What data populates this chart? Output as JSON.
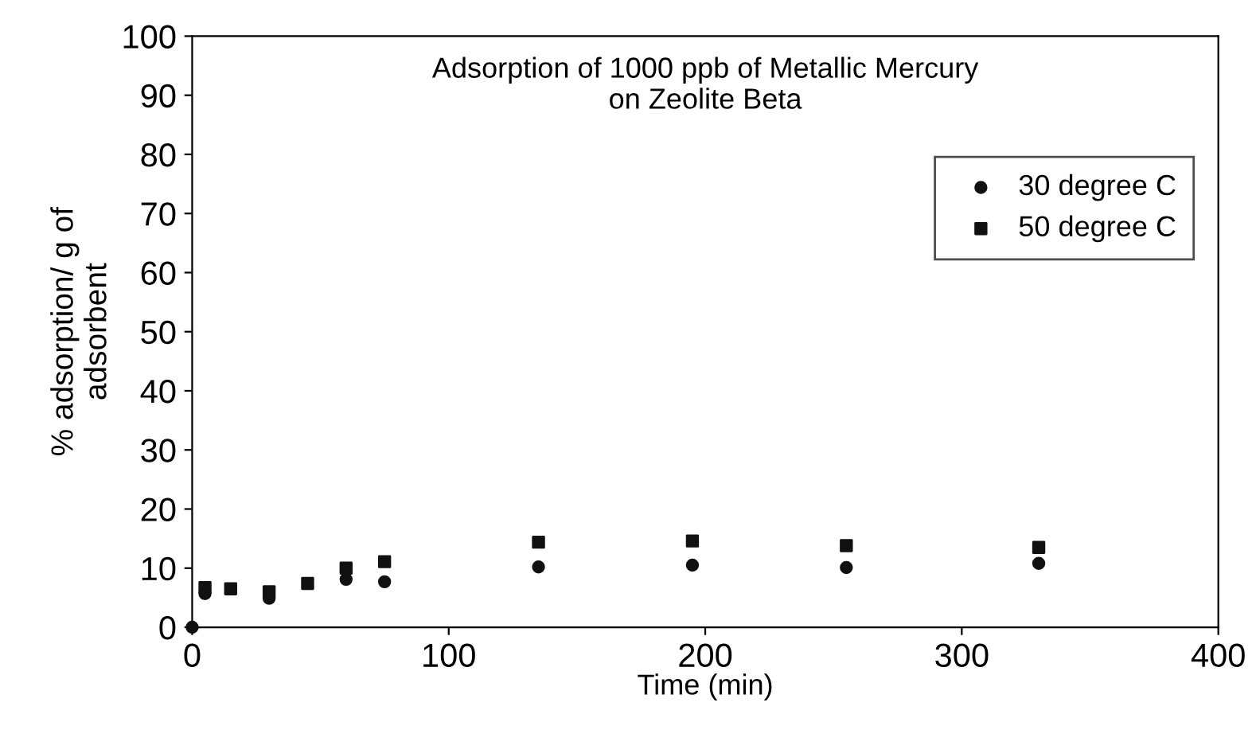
{
  "chart_data": {
    "type": "scatter",
    "title": "Adsorption of 1000 ppb of Metallic Mercury\non Zeolite Beta",
    "xlabel": "Time (min)",
    "ylabel": "% adsorption/ g of\nadsorbent",
    "xlim": [
      0,
      400
    ],
    "xticks": [
      0,
      100,
      200,
      300,
      400
    ],
    "ylim": [
      0,
      100
    ],
    "yticks": [
      0,
      10,
      20,
      30,
      40,
      50,
      60,
      70,
      80,
      90,
      100
    ],
    "grid": false,
    "legend": "top right",
    "series": [
      {
        "name": "30 degree C",
        "color": "#111111",
        "marker": "circle",
        "x": [
          0,
          5,
          15,
          30,
          45,
          60,
          75,
          135,
          195,
          255,
          330
        ],
        "values": [
          0,
          5.7,
          null,
          4.9,
          null,
          8.1,
          7.7,
          10.2,
          10.5,
          10.1,
          10.8
        ]
      },
      {
        "name": "50 degree C",
        "color": "#111111",
        "marker": "square",
        "x": [
          5,
          15,
          30,
          45,
          60,
          75,
          135,
          195,
          255,
          330
        ],
        "values": [
          6.7,
          6.5,
          6.0,
          7.4,
          10.0,
          11.1,
          14.4,
          14.6,
          13.8,
          13.5
        ]
      }
    ]
  }
}
